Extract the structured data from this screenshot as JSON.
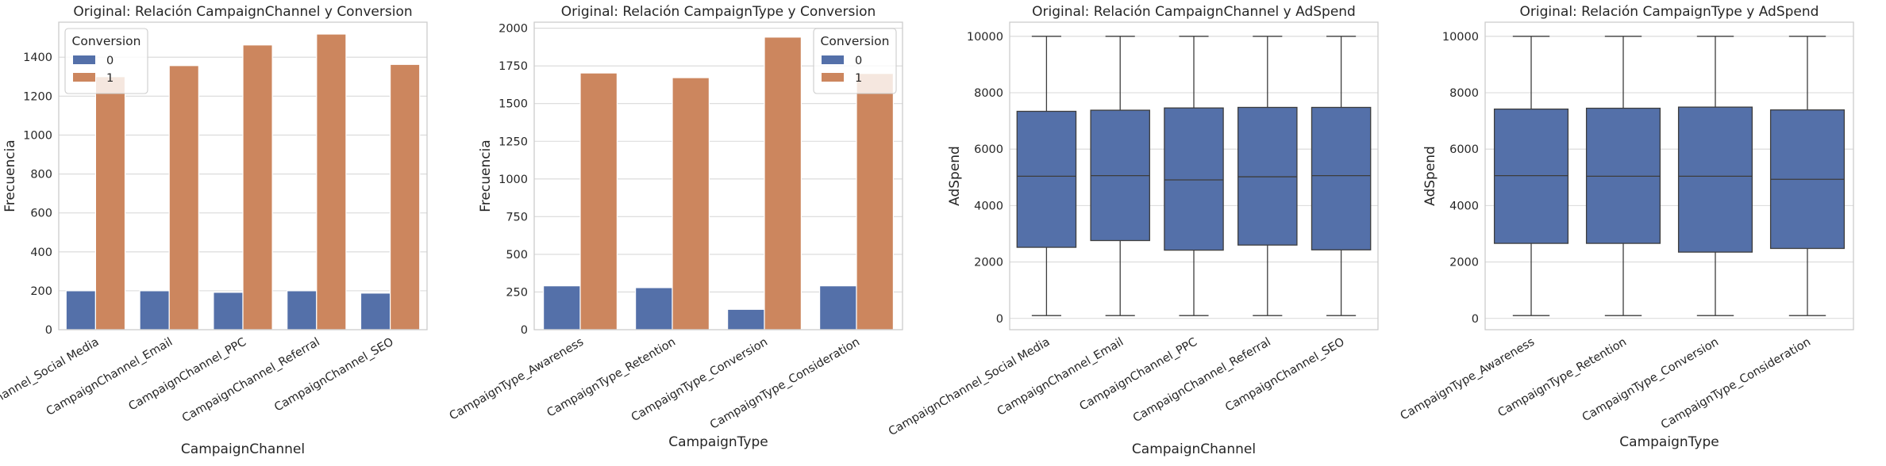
{
  "chart_data": [
    {
      "type": "bar",
      "title": "Original: Relación CampaignChannel y Conversion",
      "xlabel": "CampaignChannel",
      "ylabel": "Frecuencia",
      "categories": [
        "CampaignChannel_Social Media",
        "CampaignChannel_Email",
        "CampaignChannel_PPC",
        "CampaignChannel_Referral",
        "CampaignChannel_SEO"
      ],
      "series": [
        {
          "name": "0",
          "values": [
            200,
            200,
            192,
            200,
            188
          ]
        },
        {
          "name": "1",
          "values": [
            1300,
            1357,
            1463,
            1519,
            1363
          ]
        }
      ],
      "ylim": [
        0,
        1580
      ],
      "yticks": [
        0,
        200,
        400,
        600,
        800,
        1000,
        1200,
        1400
      ],
      "legend": {
        "title": "Conversion",
        "position": "top-left"
      },
      "grid": "y",
      "colors": [
        "#5470a9",
        "#cc865e"
      ]
    },
    {
      "type": "bar",
      "title": "Original: Relación CampaignType y Conversion",
      "xlabel": "CampaignType",
      "ylabel": "Frecuencia",
      "categories": [
        "CampaignType_Awareness",
        "CampaignType_Retention",
        "CampaignType_Conversion",
        "CampaignType_Consideration"
      ],
      "series": [
        {
          "name": "0",
          "values": [
            291,
            279,
            135,
            291
          ]
        },
        {
          "name": "1",
          "values": [
            1703,
            1672,
            1941,
            1700
          ]
        }
      ],
      "ylim": [
        0,
        2040
      ],
      "yticks": [
        0,
        250,
        500,
        750,
        1000,
        1250,
        1500,
        1750,
        2000
      ],
      "legend": {
        "title": "Conversion",
        "position": "top-right"
      },
      "grid": "y",
      "colors": [
        "#5470a9",
        "#cc865e"
      ]
    },
    {
      "type": "box",
      "title": "Original: Relación CampaignChannel y AdSpend",
      "xlabel": "CampaignChannel",
      "ylabel": "AdSpend",
      "categories": [
        "CampaignChannel_Social Media",
        "CampaignChannel_Email",
        "CampaignChannel_PPC",
        "CampaignChannel_Referral",
        "CampaignChannel_SEO"
      ],
      "boxes": [
        {
          "min": 100,
          "q1": 2520,
          "median": 5040,
          "q3": 7340,
          "max": 10000
        },
        {
          "min": 100,
          "q1": 2760,
          "median": 5060,
          "q3": 7380,
          "max": 10000
        },
        {
          "min": 100,
          "q1": 2420,
          "median": 4910,
          "q3": 7460,
          "max": 10000
        },
        {
          "min": 100,
          "q1": 2600,
          "median": 5020,
          "q3": 7480,
          "max": 10000
        },
        {
          "min": 100,
          "q1": 2430,
          "median": 5060,
          "q3": 7480,
          "max": 10000
        }
      ],
      "ylim": [
        -400,
        10500
      ],
      "yticks": [
        0,
        2000,
        4000,
        6000,
        8000,
        10000
      ],
      "grid": "y",
      "colors": [
        "#5470a9"
      ]
    },
    {
      "type": "box",
      "title": "Original: Relación CampaignType y AdSpend",
      "xlabel": "CampaignType",
      "ylabel": "AdSpend",
      "categories": [
        "CampaignType_Awareness",
        "CampaignType_Retention",
        "CampaignType_Conversion",
        "CampaignType_Consideration"
      ],
      "boxes": [
        {
          "min": 100,
          "q1": 2660,
          "median": 5060,
          "q3": 7420,
          "max": 10000
        },
        {
          "min": 100,
          "q1": 2660,
          "median": 5040,
          "q3": 7450,
          "max": 10000
        },
        {
          "min": 100,
          "q1": 2350,
          "median": 5040,
          "q3": 7490,
          "max": 10000
        },
        {
          "min": 100,
          "q1": 2480,
          "median": 4930,
          "q3": 7390,
          "max": 10000
        }
      ],
      "ylim": [
        -400,
        10500
      ],
      "yticks": [
        0,
        2000,
        4000,
        6000,
        8000,
        10000
      ],
      "grid": "y",
      "colors": [
        "#5470a9"
      ]
    }
  ]
}
